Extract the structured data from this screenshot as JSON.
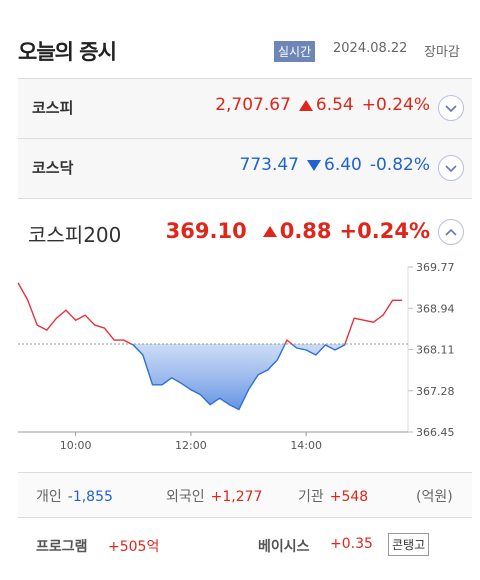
{
  "header": {
    "title": "오늘의 증시",
    "badge": "실시간",
    "date": "2024.08.22",
    "status": "장마감"
  },
  "indices": [
    {
      "name": "코스피",
      "value": "2,707.67",
      "change": "6.54",
      "rate": "+0.24%",
      "color": "#e0261b"
    },
    {
      "name": "코스닥",
      "value": "773.47",
      "change": "6.40",
      "rate": "-0.82%",
      "color": "#1f62d0"
    },
    {
      "name": "코스피200",
      "value": "369.10",
      "change": "0.88",
      "rate": "+0.24%",
      "color": "#e0261b"
    }
  ],
  "chart_data": {
    "type": "line",
    "x": [
      "09:00",
      "09:10",
      "09:20",
      "09:30",
      "09:40",
      "09:50",
      "10:00",
      "10:10",
      "10:20",
      "10:30",
      "10:40",
      "10:50",
      "11:00",
      "11:10",
      "11:20",
      "11:30",
      "11:40",
      "11:50",
      "12:00",
      "12:10",
      "12:20",
      "12:30",
      "12:40",
      "12:50",
      "13:00",
      "13:10",
      "13:20",
      "13:30",
      "13:40",
      "13:50",
      "14:00",
      "14:10",
      "14:20",
      "14:30",
      "14:40",
      "14:50",
      "15:00",
      "15:10",
      "15:20",
      "15:30",
      "15:40"
    ],
    "values": [
      369.45,
      369.11,
      368.6,
      368.5,
      368.74,
      368.9,
      368.7,
      368.8,
      368.6,
      368.54,
      368.3,
      368.3,
      368.2,
      368.0,
      367.4,
      367.4,
      367.54,
      367.43,
      367.3,
      367.2,
      367.0,
      367.13,
      367.0,
      366.9,
      367.3,
      367.6,
      367.7,
      367.9,
      368.3,
      368.14,
      368.1,
      368.0,
      368.2,
      368.1,
      368.2,
      368.74,
      368.7,
      368.66,
      368.8,
      369.1,
      369.1
    ],
    "reference": 368.22,
    "up_color": "#e8313a",
    "down_color": "#2f6fd8",
    "xlim": [
      "09:00",
      "15:46"
    ],
    "xticks": [
      "10:00",
      "12:00",
      "14:00"
    ],
    "ylim": [
      366.45,
      369.77
    ],
    "yticks": [
      366.45,
      367.28,
      368.11,
      368.94,
      369.77
    ]
  },
  "investors": [
    {
      "label": "개인",
      "value": "-1,855"
    },
    {
      "label": "외국인",
      "value": "+1,277"
    },
    {
      "label": "기관",
      "value": "+548"
    }
  ],
  "unit": "(억원)",
  "program": {
    "label": "프로그램",
    "value": "+505억"
  },
  "basis": {
    "label": "베이시스",
    "value": "+0.35",
    "state": "콘탱고"
  }
}
